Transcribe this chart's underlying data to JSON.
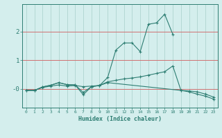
{
  "xlabel": "Humidex (Indice chaleur)",
  "x": [
    0,
    1,
    2,
    3,
    4,
    5,
    6,
    7,
    8,
    9,
    10,
    11,
    12,
    13,
    14,
    15,
    16,
    17,
    18,
    19,
    20,
    21,
    22,
    23
  ],
  "line1": [
    -0.05,
    -0.05,
    0.07,
    0.13,
    0.22,
    0.15,
    0.14,
    -0.12,
    0.08,
    0.12,
    0.4,
    1.35,
    1.6,
    1.6,
    1.3,
    2.25,
    2.3,
    2.6,
    1.9,
    null,
    null,
    null,
    null,
    null
  ],
  "line2": [
    -0.05,
    -0.05,
    0.07,
    0.13,
    0.22,
    0.15,
    0.14,
    -0.2,
    0.08,
    0.12,
    0.25,
    0.3,
    0.35,
    0.38,
    0.42,
    0.48,
    0.54,
    0.6,
    0.8,
    -0.05,
    -0.07,
    -0.1,
    -0.18,
    -0.28
  ],
  "line3": [
    -0.05,
    -0.05,
    0.05,
    0.1,
    0.14,
    0.1,
    0.12,
    0.08,
    0.1,
    0.12,
    0.22,
    null,
    null,
    null,
    null,
    null,
    null,
    null,
    null,
    -0.05,
    -0.1,
    -0.18,
    -0.25,
    -0.35
  ],
  "color": "#2d7d72",
  "bg_color": "#d4eeed",
  "grid_color": "#aed4d0",
  "red_line_color": "#d07070",
  "ytick_labels": [
    "-0",
    "1",
    "2"
  ],
  "ytick_vals": [
    0,
    1,
    2
  ],
  "ylim": [
    -0.65,
    2.95
  ],
  "xlim": [
    -0.5,
    23.5
  ]
}
